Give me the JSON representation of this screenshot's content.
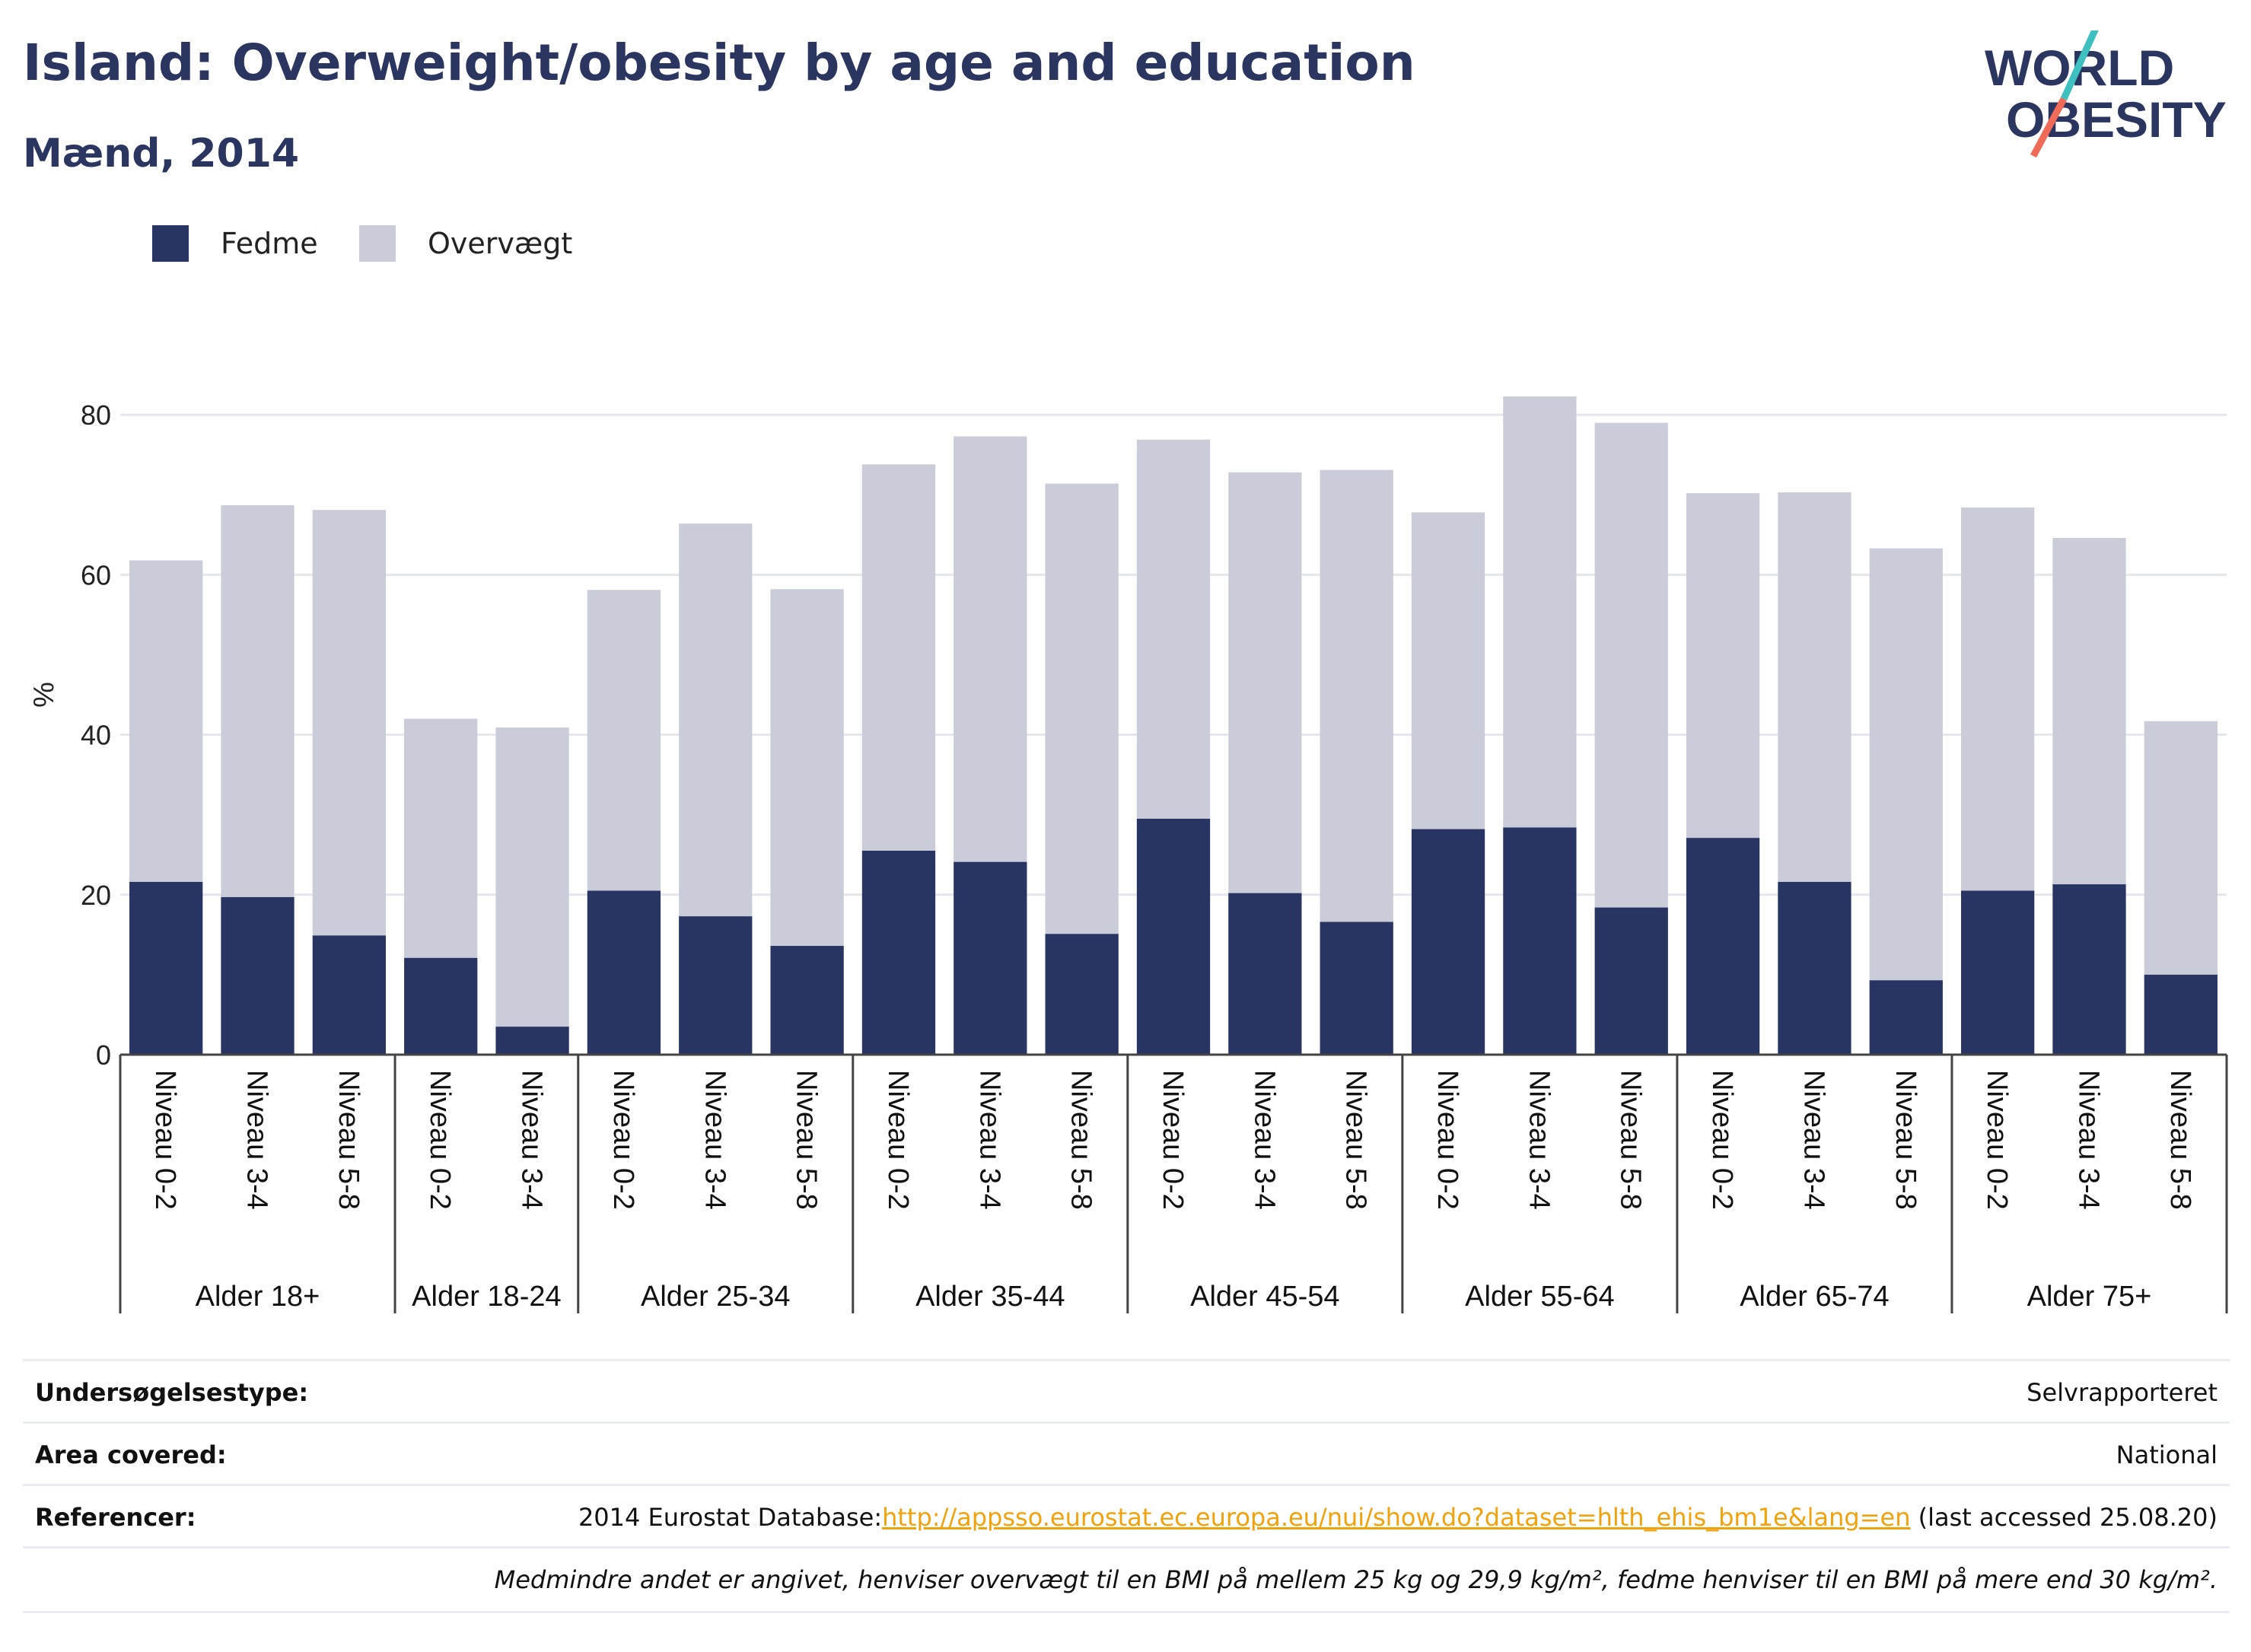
{
  "header": {
    "title": "Island: Overweight/obesity by age and education",
    "subtitle": "Mænd, 2014"
  },
  "logo": {
    "line1": "WORLD",
    "line2": "OBESITY",
    "colors": {
      "text": "#2a3560",
      "slash_top": "#3ebfc0",
      "slash_bottom": "#ef6b57"
    }
  },
  "legend": [
    {
      "label": "Fedme",
      "color": "#283562"
    },
    {
      "label": "Overvægt",
      "color": "#cacdd9"
    }
  ],
  "chart_data": {
    "type": "bar",
    "stacked": true,
    "ylabel": "%",
    "xlabel": "",
    "ylim": [
      0,
      90
    ],
    "yticks": [
      0,
      20,
      40,
      60,
      80
    ],
    "grid": true,
    "groups": [
      {
        "label": "Alder 18+",
        "categories": [
          "Niveau 0-2",
          "Niveau 3-4",
          "Niveau 5-8"
        ]
      },
      {
        "label": "Alder 18-24",
        "categories": [
          "Niveau 0-2",
          "Niveau 3-4"
        ]
      },
      {
        "label": "Alder 25-34",
        "categories": [
          "Niveau 0-2",
          "Niveau 3-4",
          "Niveau 5-8"
        ]
      },
      {
        "label": "Alder 35-44",
        "categories": [
          "Niveau 0-2",
          "Niveau 3-4",
          "Niveau 5-8"
        ]
      },
      {
        "label": "Alder 45-54",
        "categories": [
          "Niveau 0-2",
          "Niveau 3-4",
          "Niveau 5-8"
        ]
      },
      {
        "label": "Alder 55-64",
        "categories": [
          "Niveau 0-2",
          "Niveau 3-4",
          "Niveau 5-8"
        ]
      },
      {
        "label": "Alder 65-74",
        "categories": [
          "Niveau 0-2",
          "Niveau 3-4",
          "Niveau 5-8"
        ]
      },
      {
        "label": "Alder 75+",
        "categories": [
          "Niveau 0-2",
          "Niveau 3-4",
          "Niveau 5-8"
        ]
      }
    ],
    "series": [
      {
        "name": "Fedme",
        "color": "#283562",
        "values": [
          21.6,
          19.7,
          14.9,
          12.1,
          3.5,
          20.5,
          17.3,
          13.6,
          25.5,
          24.1,
          15.1,
          29.5,
          20.2,
          16.6,
          28.2,
          28.4,
          18.4,
          27.1,
          21.6,
          9.3,
          20.5,
          21.3,
          10.0
        ]
      },
      {
        "name": "Overvægt",
        "color": "#cacdd9",
        "values": [
          40.2,
          49.0,
          53.2,
          29.9,
          37.4,
          37.6,
          49.1,
          44.6,
          48.3,
          53.2,
          56.3,
          47.4,
          52.6,
          56.5,
          39.6,
          53.9,
          60.6,
          43.1,
          48.7,
          54.0,
          47.9,
          43.3,
          31.7
        ]
      }
    ]
  },
  "info": {
    "rows": [
      {
        "key": "Undersøgelsestype:",
        "value": "Selvrapporteret"
      },
      {
        "key": "Area covered:",
        "value": "National"
      },
      {
        "key": "Referencer:",
        "prefix": "2014 Eurostat Database:",
        "link": "http://appsso.eurostat.ec.europa.eu/nui/show.do?dataset=hlth_ehis_bm1e&lang=en",
        "suffix": " (last accessed 25.08.20)"
      }
    ],
    "note": "Medmindre andet er angivet, henviser overvægt til en BMI på mellem 25 kg og 29,9 kg/m², fedme henviser til en BMI på mere end 30 kg/m².",
    "link_color": "#f2a20c"
  }
}
